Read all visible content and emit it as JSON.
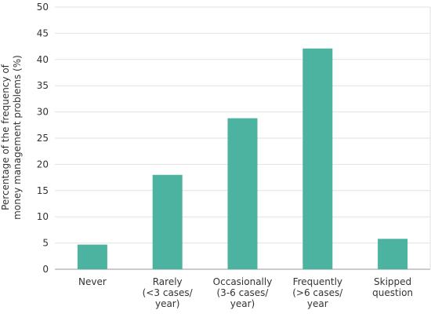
{
  "chart_data": {
    "type": "bar",
    "title": "",
    "ylabel_lines": [
      "Percentage of the frequency of",
      "money management problems (%)"
    ],
    "xlabel": "",
    "ylim": [
      0,
      50
    ],
    "yticks": [
      "0",
      "5",
      "10",
      "15",
      "20",
      "25",
      "30",
      "35",
      "40",
      "45",
      "50"
    ],
    "grid": true,
    "categories": [
      {
        "lines": [
          "Never"
        ],
        "value": 4.7
      },
      {
        "lines": [
          "Rarely",
          "(<3 cases/",
          "year)"
        ],
        "value": 18.0
      },
      {
        "lines": [
          "Occasionally",
          "(3-6 cases/",
          "year)"
        ],
        "value": 28.8
      },
      {
        "lines": [
          "Frequently",
          "(>6 cases/",
          "year"
        ],
        "value": 42.1
      },
      {
        "lines": [
          "Skipped",
          "question"
        ],
        "value": 5.8
      }
    ],
    "bar_color": "#4bb39f",
    "grid_color": "#e2e2e2",
    "axis_color": "#999999"
  }
}
